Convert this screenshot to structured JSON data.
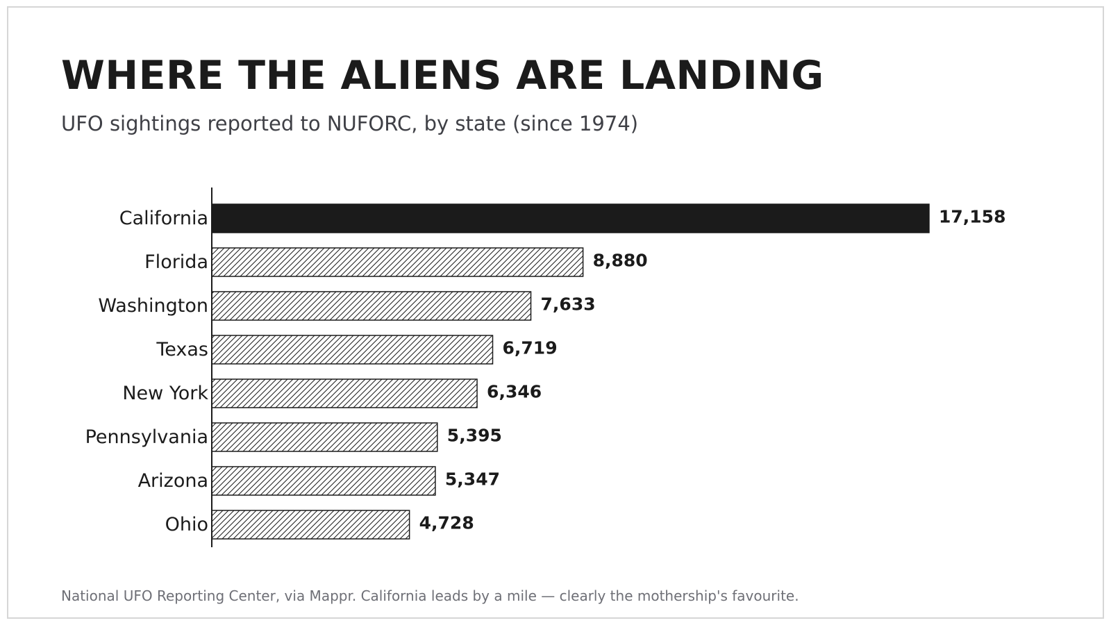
{
  "chart_data": {
    "type": "bar",
    "orientation": "horizontal",
    "title": "WHERE THE ALIENS ARE LANDING",
    "subtitle": "UFO sightings reported to NUFORC, by state (since 1974)",
    "categories": [
      "California",
      "Florida",
      "Washington",
      "Texas",
      "New York",
      "Pennsylvania",
      "Arizona",
      "Ohio"
    ],
    "values": [
      17158,
      8880,
      7633,
      6719,
      6346,
      5395,
      5347,
      4728
    ],
    "value_labels": [
      "17,158",
      "8,880",
      "7,633",
      "6,719",
      "6,346",
      "5,395",
      "5,347",
      "4,728"
    ],
    "xlim": [
      0,
      17158
    ],
    "highlighted_category": "California",
    "highlight_style": "solid",
    "other_style": "diagonal-hatch",
    "grid": false,
    "legend": "none",
    "colors": {
      "highlight": "#1b1b1b",
      "bar_outline": "#1b1b1b",
      "hatch": "#1b1b1b",
      "bar_fill": "#ffffff",
      "text": "#1b1b1b"
    },
    "footer": "National UFO Reporting Center, via Mappr.  California leads by a mile — clearly the mothership's favourite."
  }
}
